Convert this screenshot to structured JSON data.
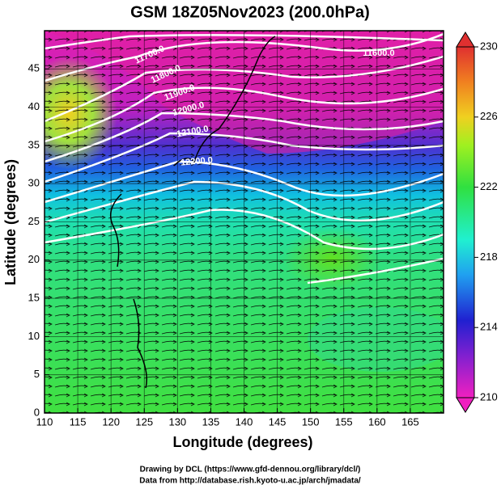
{
  "chart_data": {
    "type": "map",
    "title": "GSM 18Z05Nov2023 (200.0hPa)",
    "x_label": "Longitude (degrees)",
    "y_label": "Latitude  (degrees)",
    "xlim": [
      110,
      170
    ],
    "xticks": [
      110,
      115,
      120,
      125,
      130,
      135,
      140,
      145,
      150,
      155,
      160,
      165
    ],
    "ylim": [
      0,
      50
    ],
    "yticks": [
      0,
      5,
      10,
      15,
      20,
      25,
      30,
      35,
      40,
      45
    ],
    "grid": true,
    "colorbar": {
      "lim": [
        210,
        230
      ],
      "ticks": [
        210,
        214,
        218,
        222,
        226,
        230
      ]
    },
    "contour_labels": [
      {
        "value": 11700,
        "label": "11700.0"
      },
      {
        "value": 11800,
        "label": "11800.0"
      },
      {
        "value": 11900,
        "label": "11900.0"
      },
      {
        "value": 12000,
        "label": "12000.0"
      },
      {
        "value": 12100,
        "label": "12100.0"
      },
      {
        "value": 12200,
        "label": "12200.0"
      },
      {
        "value": 11600,
        "label": "11600.0"
      }
    ],
    "credits": [
      "Drawing by DCL (https://www.gfd-dennou.org/library/dcl/)",
      "Data from http://database.rish.kyoto-u.ac.jp/arch/jmadata/"
    ]
  }
}
